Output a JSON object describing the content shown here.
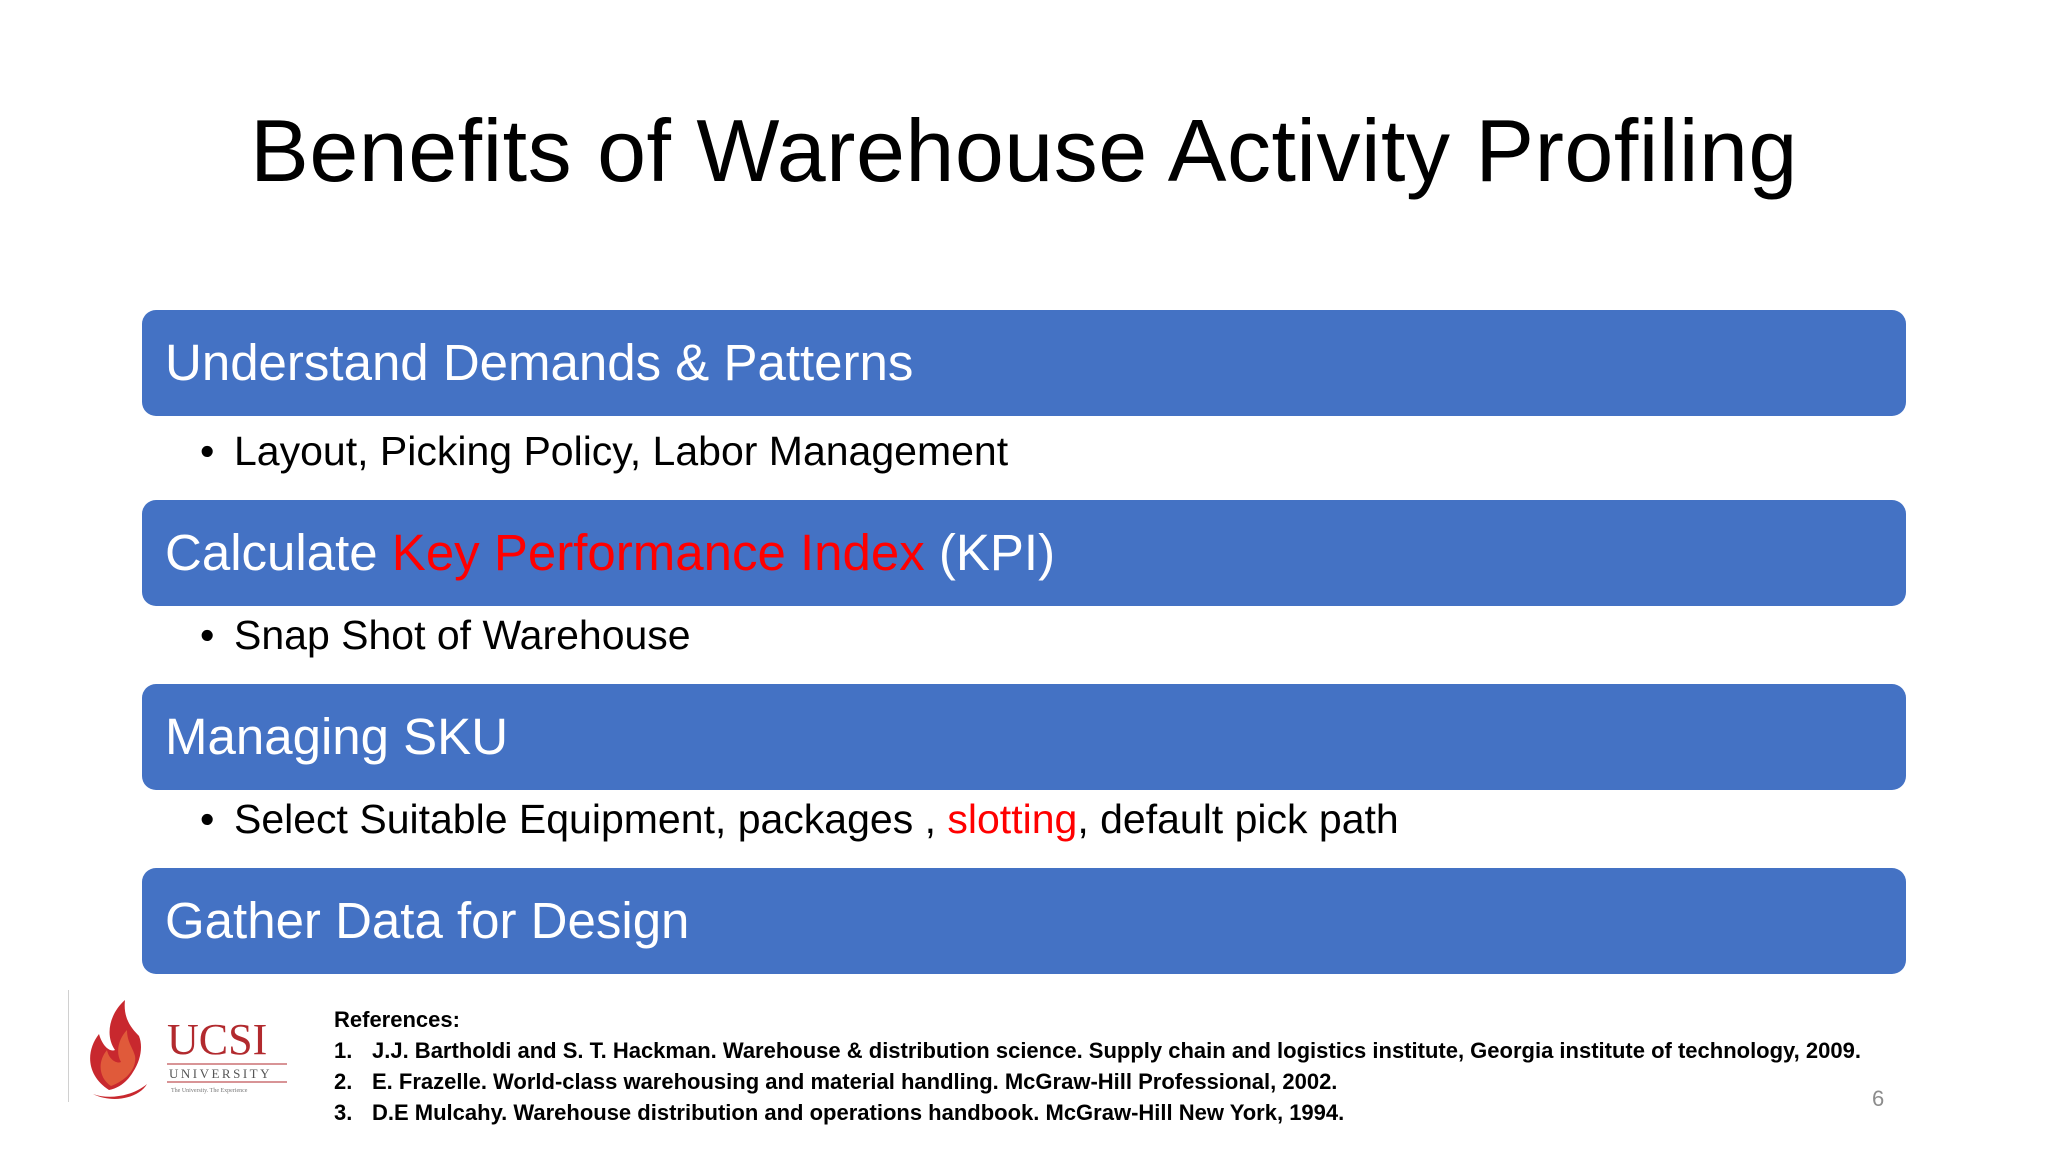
{
  "slide": {
    "title": "Benefits of Warehouse Activity Profiling",
    "sections": [
      {
        "heading": "Understand Demands & Patterns",
        "bullet": "Layout, Picking Policy, Labor Management"
      },
      {
        "heading_before": "Calculate ",
        "heading_highlight": "Key Performance Index",
        "heading_after": " (KPI)",
        "bullet": "Snap Shot of Warehouse"
      },
      {
        "heading": "Managing SKU",
        "bullet_before": "Select Suitable Equipment, packages , ",
        "bullet_highlight": "slotting",
        "bullet_after": ", default pick path"
      },
      {
        "heading": "Gather Data for Design"
      }
    ],
    "bullet_glyph": "•",
    "highlight_color": "#ff0000",
    "bar_color": "#4472C4"
  },
  "references": {
    "label": "References:",
    "items": [
      {
        "num": "1.",
        "text": "J.J. Bartholdi and S. T. Hackman. Warehouse & distribution science. Supply chain and logistics institute, Georgia institute of technology, 2009."
      },
      {
        "num": "2.",
        "text": "E. Frazelle. World-class warehousing and material handling. McGraw-Hill Professional, 2002."
      },
      {
        "num": "3.",
        "text": "D.E Mulcahy. Warehouse distribution and operations handbook. McGraw-Hill New York, 1994."
      }
    ]
  },
  "logo": {
    "name": "UCSI",
    "subtitle": "UNIVERSITY",
    "tagline": "The University. The Experience",
    "icon": "flame-icon",
    "color": "#b22a2e"
  },
  "footer": {
    "page_number": "6"
  }
}
